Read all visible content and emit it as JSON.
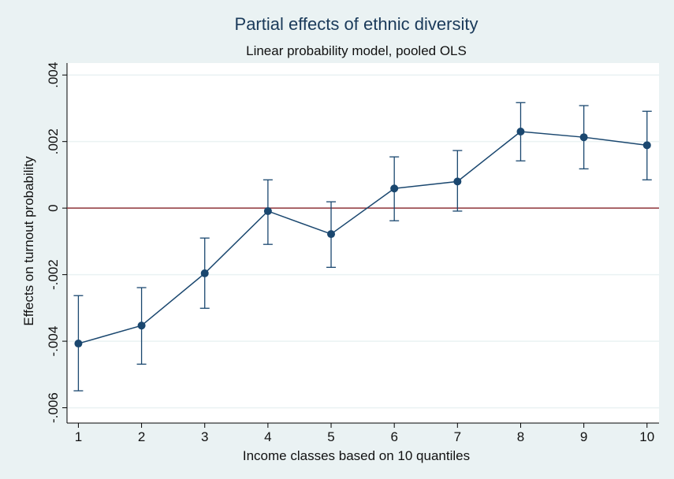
{
  "chart_data": {
    "type": "errorbar-line",
    "title": "Partial effects of ethnic diversity",
    "subtitle": "Linear probability model, pooled OLS",
    "x_label": "Income classes based on 10 quantiles",
    "y_label": "Effects on turnout probability",
    "x": [
      1,
      2,
      3,
      4,
      5,
      6,
      7,
      8,
      9,
      10
    ],
    "values": [
      -0.00407,
      -0.00353,
      -0.00196,
      -9e-05,
      -0.00078,
      0.00059,
      0.0008,
      0.0023,
      0.00213,
      0.00189
    ],
    "ci_lower": [
      -0.00549,
      -0.00469,
      -0.00301,
      -0.00109,
      -0.00178,
      -0.00038,
      -9e-05,
      0.00142,
      0.00118,
      0.00085
    ],
    "ci_upper": [
      -0.00263,
      -0.00239,
      -0.0009,
      0.00085,
      0.00019,
      0.00154,
      0.00173,
      0.00317,
      0.00308,
      0.00291
    ],
    "color": "#1a476f",
    "yline": 0,
    "yline_color": "#90353b",
    "xlim": [
      0.82,
      10.19
    ],
    "xticks": [
      1,
      2,
      3,
      4,
      5,
      6,
      7,
      8,
      9,
      10
    ],
    "ylim": [
      -0.00646,
      0.00436
    ],
    "yticks": [
      {
        "value": -0.006,
        "label": "-.006"
      },
      {
        "value": -0.004,
        "label": "-.004"
      },
      {
        "value": -0.002,
        "label": "-.002"
      },
      0,
      {
        "value": 0.002,
        "label": ".002"
      },
      {
        "value": 0.004,
        "label": ".004"
      }
    ],
    "grid": true
  }
}
